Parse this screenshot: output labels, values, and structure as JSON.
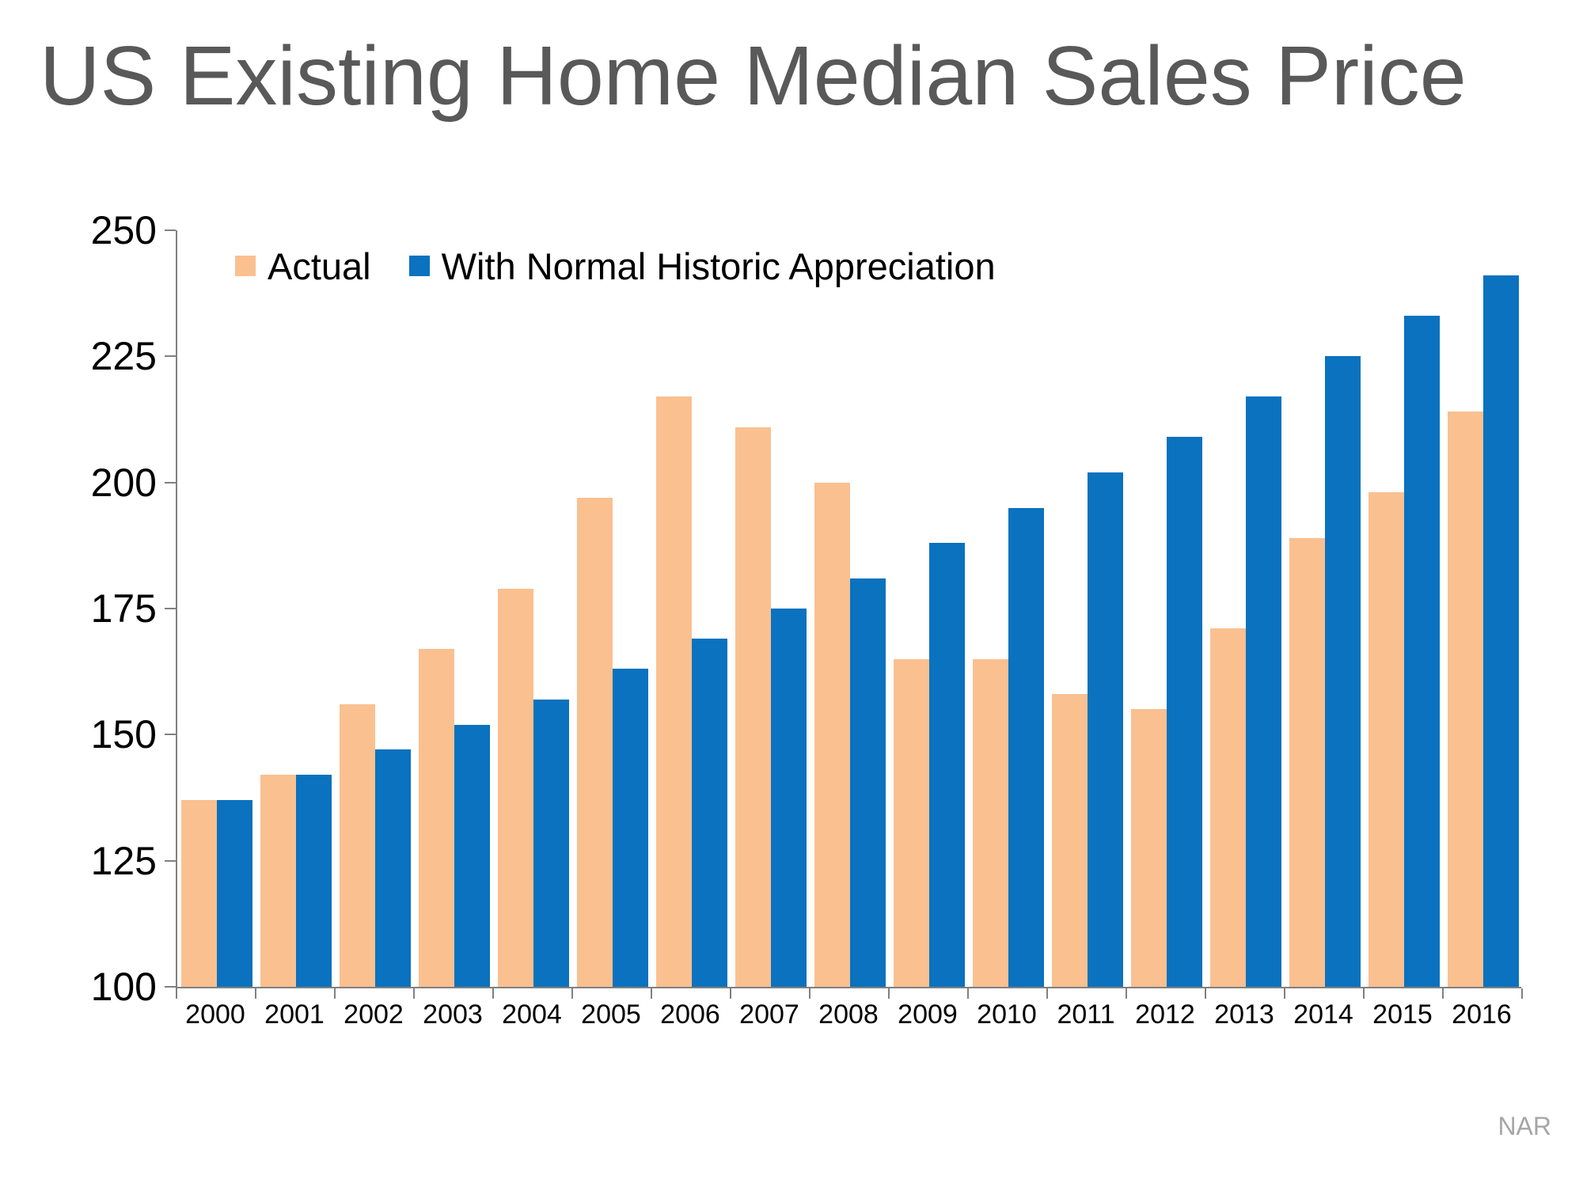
{
  "title": "US Existing Home Median Sales Price",
  "source": "NAR",
  "colors": {
    "actual": "#FAC090",
    "appreciation": "#0A72BF",
    "title_text": "#595959",
    "axis": "#808080",
    "tick_text": "#000000",
    "source_text": "#A6A6A6"
  },
  "chart_data": {
    "type": "bar",
    "title": "US Existing Home Median Sales Price",
    "categories": [
      "2000",
      "2001",
      "2002",
      "2003",
      "2004",
      "2005",
      "2006",
      "2007",
      "2008",
      "2009",
      "2010",
      "2011",
      "2012",
      "2013",
      "2014",
      "2015",
      "2016"
    ],
    "series": [
      {
        "name": "Actual",
        "color": "#FAC090",
        "values": [
          137,
          142,
          156,
          167,
          179,
          197,
          217,
          211,
          200,
          165,
          165,
          158,
          155,
          171,
          189,
          198,
          214
        ]
      },
      {
        "name": "With Normal Historic Appreciation",
        "color": "#0A72BF",
        "values": [
          137,
          142,
          147,
          152,
          157,
          163,
          169,
          175,
          181,
          188,
          195,
          202,
          209,
          217,
          225,
          233,
          241
        ]
      }
    ],
    "xlabel": "",
    "ylabel": "",
    "ylim": [
      100,
      250
    ],
    "ytick_step": 25,
    "grid": false,
    "legend_position": "top-left-inside",
    "source_note": "NAR"
  }
}
